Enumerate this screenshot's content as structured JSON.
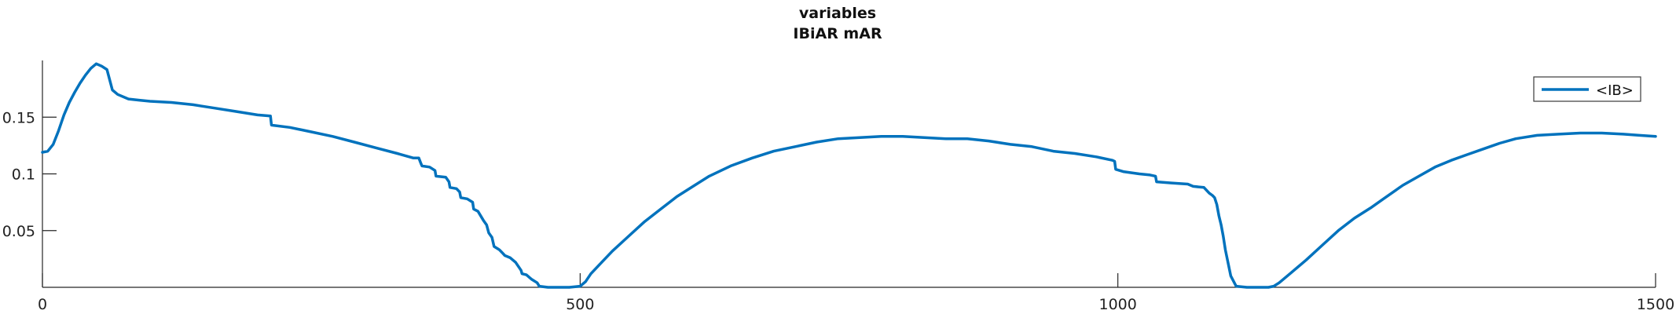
{
  "chart_data": {
    "type": "line",
    "title": "variables",
    "subtitle": "IBiAR mAR",
    "xlabel": "",
    "ylabel": "",
    "xlim": [
      0,
      1500
    ],
    "ylim": [
      0,
      0.2
    ],
    "xticks": [
      0,
      500,
      1000,
      1500
    ],
    "xtick_labels": [
      "0",
      "500",
      "1000",
      "1500"
    ],
    "yticks": [
      0.05,
      0.1,
      0.15
    ],
    "ytick_labels": [
      "0.05",
      "0.1",
      "0.15"
    ],
    "grid": false,
    "legend_position": "top-right",
    "series": [
      {
        "name": "<IB>",
        "color": "#0072BD",
        "x": [
          0,
          5,
          10,
          15,
          20,
          25,
          30,
          35,
          40,
          45,
          50,
          55,
          60,
          65,
          70,
          80,
          90,
          100,
          120,
          140,
          160,
          180,
          200,
          212,
          213,
          230,
          250,
          270,
          290,
          310,
          330,
          345,
          350,
          352,
          353,
          360,
          365,
          366,
          375,
          378,
          379,
          385,
          388,
          389,
          395,
          400,
          401,
          405,
          410,
          413,
          415,
          418,
          420,
          425,
          428,
          430,
          435,
          440,
          445,
          446,
          450,
          455,
          460,
          462,
          470,
          480,
          490,
          500,
          505,
          510,
          520,
          530,
          545,
          560,
          575,
          590,
          605,
          620,
          640,
          660,
          680,
          700,
          720,
          740,
          760,
          780,
          800,
          820,
          840,
          860,
          880,
          900,
          920,
          940,
          960,
          980,
          995,
          997,
          998,
          1005,
          1020,
          1030,
          1035,
          1036,
          1050,
          1065,
          1070,
          1080,
          1085,
          1088,
          1090,
          1092,
          1094,
          1096,
          1098,
          1100,
          1105,
          1110,
          1120,
          1130,
          1140,
          1145,
          1150,
          1160,
          1175,
          1190,
          1205,
          1220,
          1235,
          1250,
          1265,
          1280,
          1295,
          1310,
          1325,
          1340,
          1355,
          1370,
          1390,
          1410,
          1430,
          1450,
          1470,
          1485,
          1500
        ],
        "values": [
          0.119,
          0.12,
          0.126,
          0.138,
          0.152,
          0.163,
          0.172,
          0.18,
          0.187,
          0.193,
          0.197,
          0.195,
          0.192,
          0.174,
          0.17,
          0.166,
          0.165,
          0.164,
          0.163,
          0.161,
          0.158,
          0.155,
          0.152,
          0.151,
          0.143,
          0.141,
          0.137,
          0.133,
          0.128,
          0.123,
          0.118,
          0.114,
          0.114,
          0.109,
          0.107,
          0.106,
          0.103,
          0.098,
          0.097,
          0.093,
          0.088,
          0.087,
          0.084,
          0.079,
          0.078,
          0.075,
          0.069,
          0.067,
          0.059,
          0.055,
          0.048,
          0.044,
          0.036,
          0.033,
          0.03,
          0.028,
          0.026,
          0.022,
          0.015,
          0.012,
          0.011,
          0.007,
          0.004,
          0.001,
          0.0,
          0.0,
          0.0,
          0.001,
          0.005,
          0.012,
          0.022,
          0.032,
          0.045,
          0.058,
          0.069,
          0.08,
          0.089,
          0.098,
          0.107,
          0.114,
          0.12,
          0.124,
          0.128,
          0.131,
          0.132,
          0.133,
          0.133,
          0.132,
          0.131,
          0.131,
          0.129,
          0.126,
          0.124,
          0.12,
          0.118,
          0.115,
          0.112,
          0.111,
          0.104,
          0.102,
          0.1,
          0.099,
          0.098,
          0.093,
          0.092,
          0.091,
          0.089,
          0.088,
          0.083,
          0.081,
          0.079,
          0.073,
          0.063,
          0.055,
          0.045,
          0.033,
          0.01,
          0.001,
          0.0,
          0.0,
          0.0,
          0.001,
          0.004,
          0.012,
          0.024,
          0.037,
          0.05,
          0.061,
          0.07,
          0.08,
          0.09,
          0.098,
          0.106,
          0.112,
          0.117,
          0.122,
          0.127,
          0.131,
          0.134,
          0.135,
          0.136,
          0.136,
          0.135,
          0.134,
          0.133
        ]
      }
    ]
  }
}
